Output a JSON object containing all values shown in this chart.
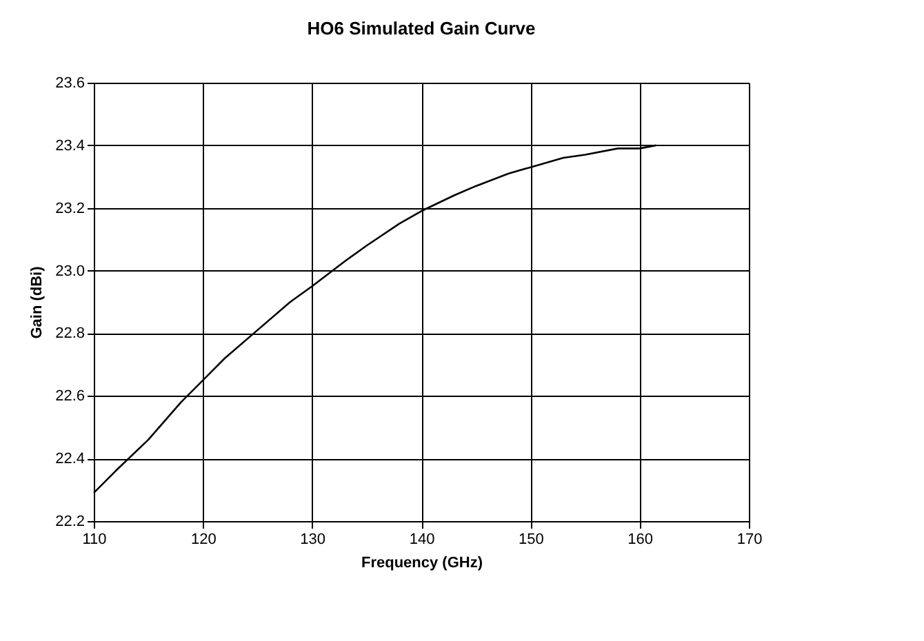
{
  "chart_data": {
    "type": "line",
    "title": "HO6 Simulated Gain Curve",
    "xlabel": "Frequency (GHz)",
    "ylabel": "Gain (dBi)",
    "x": [
      110,
      112,
      115,
      118,
      120,
      122,
      125,
      128,
      130,
      133,
      135,
      138,
      140,
      143,
      145,
      148,
      150,
      153,
      155,
      158,
      160,
      161.5
    ],
    "series": [
      {
        "color": "#000000",
        "values": [
          22.29,
          22.36,
          22.46,
          22.58,
          22.65,
          22.72,
          22.81,
          22.9,
          22.95,
          23.03,
          23.08,
          23.15,
          23.19,
          23.24,
          23.27,
          23.31,
          23.33,
          23.36,
          23.37,
          23.39,
          23.39,
          23.4
        ]
      }
    ],
    "xlim": [
      110,
      170
    ],
    "xticks": [
      110,
      120,
      130,
      140,
      150,
      160,
      170
    ],
    "ylim": [
      22.2,
      23.6
    ],
    "yticks": [
      22.2,
      22.4,
      22.6,
      22.8,
      {
        "value": 23.0,
        "label": "23.0"
      },
      23.2,
      23.4,
      23.6
    ],
    "grid": true,
    "marker": "none",
    "line_style": "solid"
  }
}
